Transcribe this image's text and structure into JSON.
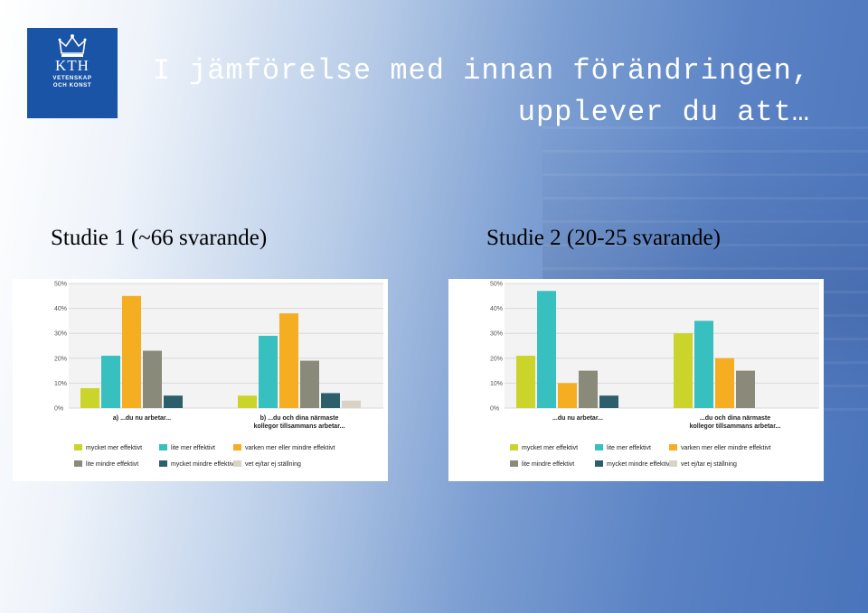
{
  "logo": {
    "name": "KTH",
    "subtitle_line1": "VETENSKAP",
    "subtitle_line2": "OCH KONST"
  },
  "title": {
    "line1": "I jämförelse med innan förändringen,",
    "line2": "upplever du att…"
  },
  "study1_label": "Studie 1  (~66 svarande)",
  "study2_label": "Studie 2  (20-25 svarande)",
  "colors": {
    "series": [
      "#cbd42a",
      "#38bfc0",
      "#f5ae22",
      "#8a8a7a",
      "#2d5e6c",
      "#d8d3c5"
    ],
    "background_accent": "#4a74bb",
    "logo_blue": "#1954a6"
  },
  "chart_data": [
    {
      "type": "bar",
      "ylim": [
        0,
        50
      ],
      "y_ticks": [
        "0%",
        "10%",
        "20%",
        "30%",
        "40%",
        "50%"
      ],
      "categories": [
        "a) ...du nu arbetar...",
        "b) ...du och dina närmaste kollegor tillsammans arbetar..."
      ],
      "category_lines": [
        [
          "a) ...du nu arbetar..."
        ],
        [
          "b) ...du och dina närmaste",
          "kollegor tillsammans arbetar..."
        ]
      ],
      "grid": true,
      "legend_position": "bottom",
      "series": [
        {
          "name": "mycket mer effektivt",
          "values": [
            8,
            5
          ]
        },
        {
          "name": "lite mer effektivt",
          "values": [
            21,
            29
          ]
        },
        {
          "name": "varken mer eller mindre effektivt",
          "values": [
            45,
            38
          ]
        },
        {
          "name": "lite mindre effektivt",
          "values": [
            23,
            19
          ]
        },
        {
          "name": "mycket mindre effektivt",
          "values": [
            5,
            6
          ]
        },
        {
          "name": "vet ej/tar ej ställning",
          "values": [
            0,
            3
          ]
        }
      ]
    },
    {
      "type": "bar",
      "ylim": [
        0,
        50
      ],
      "y_ticks": [
        "0%",
        "10%",
        "20%",
        "30%",
        "40%",
        "50%"
      ],
      "categories": [
        "...du nu arbetar...",
        "...du och dina närmaste kollegor tillsammans arbetar..."
      ],
      "category_lines": [
        [
          "...du nu arbetar..."
        ],
        [
          "...du och dina närmaste",
          "kollegor tillsammans arbetar..."
        ]
      ],
      "grid": true,
      "legend_position": "bottom",
      "series": [
        {
          "name": "mycket mer effektivt",
          "values": [
            21,
            30
          ]
        },
        {
          "name": "lite mer effektivt",
          "values": [
            47,
            35
          ]
        },
        {
          "name": "varken mer eller mindre effektivt",
          "values": [
            10,
            20
          ]
        },
        {
          "name": "lite mindre effektivt",
          "values": [
            15,
            15
          ]
        },
        {
          "name": "mycket mindre effektivt",
          "values": [
            5,
            0
          ]
        },
        {
          "name": "vet ej/tar ej ställning",
          "values": [
            0,
            0
          ]
        }
      ]
    }
  ]
}
